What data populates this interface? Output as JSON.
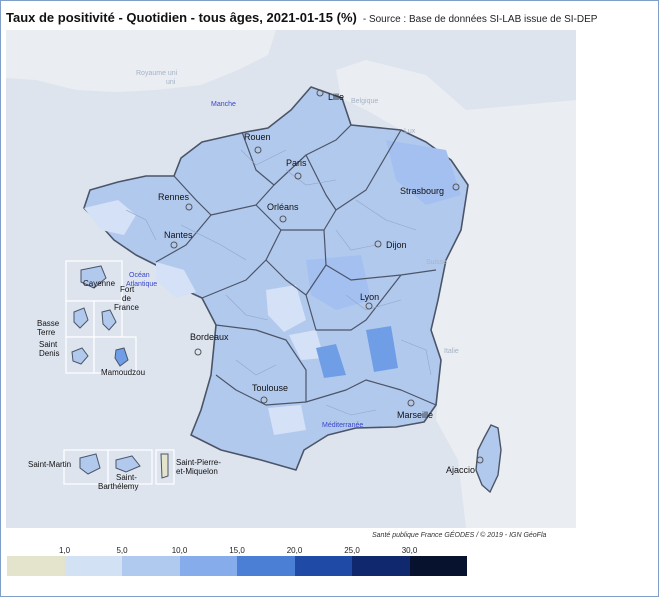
{
  "header": {
    "title": "Taux de positivité - Quotidien - tous âges, 2021-01-15 (%)",
    "source": "- Source : Base de données SI-LAB issue de SI-DEP"
  },
  "map": {
    "credit": "Santé publique France GÉODES / © 2019 - IGN GéoFla",
    "colors": {
      "sea": "#dde4ee",
      "land_neighbor": "#eef0f3",
      "fill_default": "#b2c9ee",
      "fill_medium": "#9cbcf0",
      "fill_light": "#d4e1f6",
      "fill_high": "#6f9ee6",
      "border_region": "#4b5568"
    },
    "cities": {
      "lille": "Lille",
      "rouen": "Rouen",
      "paris": "Paris",
      "strasbourg": "Strasbourg",
      "rennes": "Rennes",
      "orleans": "Orléans",
      "nantes": "Nantes",
      "dijon": "Dijon",
      "lyon": "Lyon",
      "bordeaux": "Bordeaux",
      "toulouse": "Toulouse",
      "marseille": "Marseille",
      "ajaccio": "Ajaccio"
    },
    "seas": {
      "manche": "Manche",
      "ocean_1": "Océan",
      "ocean_2": "Atlantique",
      "med": "Méditerranée"
    },
    "neighbors": {
      "uk_1": "Royaume uni",
      "uk_2": "uni",
      "belgique": "Belgique",
      "lux": "Lux",
      "suisse": "Suisse",
      "italie": "Italie"
    },
    "overseas": {
      "cayenne": "Cayenne",
      "fdf_1": "Fort",
      "fdf_2": "de",
      "fdf_3": "France",
      "bt_1": "Basse",
      "bt_2": "Terre",
      "sd_1": "Saint",
      "sd_2": "Denis",
      "mamoudzou": "Mamoudzou",
      "saint_martin": "Saint-Martin",
      "sb_1": "Saint-",
      "sb_2": "Barthélemy",
      "spm_1": "Saint-Pierre-",
      "spm_2": "et-Miquelon"
    }
  },
  "legend": {
    "labels": [
      "1,0",
      "5,0",
      "10,0",
      "15,0",
      "20,0",
      "25,0",
      "30,0"
    ],
    "thresholds": [
      1.0,
      5.0,
      10.0,
      15.0,
      20.0,
      25.0,
      30.0
    ],
    "colors": [
      "#e4e4cc",
      "#d3e1f5",
      "#b0c9ee",
      "#87aceb",
      "#4b7fd6",
      "#1f4ba6",
      "#10296e",
      "#07132e"
    ]
  }
}
